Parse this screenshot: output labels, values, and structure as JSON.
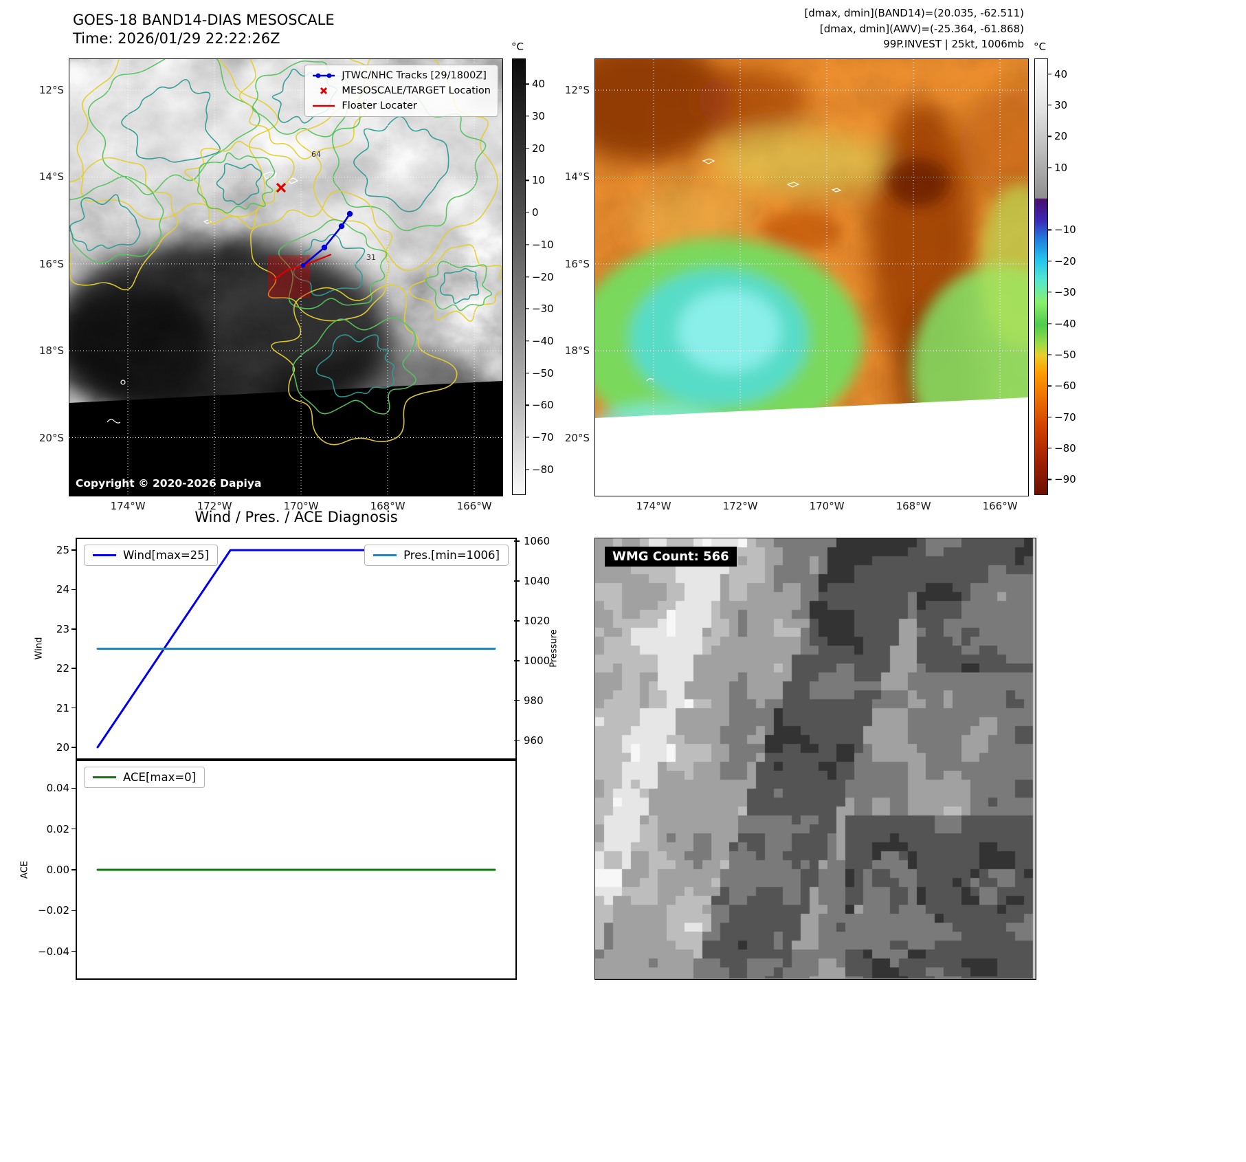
{
  "panel_band14": {
    "title": "GOES-18 BAND14-DIAS MESOSCALE",
    "time_line": "Time: 2026/01/29 22:22:26Z",
    "copyright": "Copyright © 2020-2026 Dapiya",
    "legend_items": [
      {
        "label": "JTWC/NHC Tracks [29/1800Z]",
        "color": "#0000dd",
        "marker": "line-with-dots"
      },
      {
        "label": "MESOSCALE/TARGET Location",
        "color": "#dd0000",
        "marker": "x"
      },
      {
        "label": "Floater Locater",
        "color": "#dd0000",
        "marker": "line"
      }
    ],
    "contour_labels": [
      "31",
      "31",
      "64"
    ],
    "lat_ticks": [
      "12°S",
      "14°S",
      "16°S",
      "18°S",
      "20°S"
    ],
    "lon_ticks": [
      "174°W",
      "172°W",
      "170°W",
      "168°W",
      "166°W"
    ],
    "colorbar": {
      "unit": "°C",
      "ticks": [
        40,
        30,
        20,
        10,
        0,
        -10,
        -20,
        -30,
        -40,
        -50,
        -60,
        -70,
        -80
      ],
      "vmax": 48,
      "vmin": -88
    }
  },
  "panel_awv": {
    "header_lines": [
      "[dmax, dmin](BAND14)=(20.035, -62.511)",
      "[dmax, dmin](AWV)=(-25.364, -61.868)",
      "99P.INVEST | 25kt, 1006mb"
    ],
    "lat_ticks": [
      "12°S",
      "14°S",
      "16°S",
      "18°S",
      "20°S"
    ],
    "lon_ticks": [
      "174°W",
      "172°W",
      "170°W",
      "168°W",
      "166°W"
    ],
    "colorbar": {
      "unit": "°C",
      "ticks": [
        40,
        30,
        20,
        10,
        -10,
        -20,
        -30,
        -40,
        -50,
        -60,
        -70,
        -80,
        -90
      ],
      "vmax": 45,
      "vmin": -95
    }
  },
  "wmg": {
    "count_label": "WMG Count: 566"
  },
  "chart_data": [
    {
      "type": "line",
      "name": "wind-pressure-diagnosis",
      "title": "Wind / Pres. / ACE Diagnosis",
      "left_axis": {
        "label": "Wind",
        "ticks": [
          25,
          24,
          23,
          22,
          21,
          20
        ],
        "range": [
          19.72,
          25.28
        ],
        "format": "int"
      },
      "right_axis": {
        "label": "Pressure",
        "ticks": [
          1060,
          1040,
          1020,
          1000,
          980,
          960
        ],
        "range": [
          950.9,
          1061.1
        ],
        "format": "int"
      },
      "x_axis": {
        "label": "",
        "range": [
          0,
          1
        ],
        "ticks": []
      },
      "series": [
        {
          "name": "Wind[max=25]",
          "color": "#0000ee",
          "axis": "left",
          "legend": "nw",
          "x": [
            0.047,
            0.35,
            0.953
          ],
          "y": [
            20,
            25,
            25
          ]
        },
        {
          "name": "Pres.[min=1006]",
          "color": "#2e7ebc",
          "axis": "right",
          "legend": "ne",
          "x": [
            0.047,
            0.953
          ],
          "y": [
            1006,
            1006
          ]
        }
      ]
    },
    {
      "type": "line",
      "name": "ace-diagnosis",
      "title": "",
      "left_axis": {
        "label": "ACE",
        "ticks": [
          0.04,
          0.02,
          0,
          -0.02,
          -0.04
        ],
        "range": [
          -0.0533,
          0.0533
        ],
        "format": "2dp"
      },
      "x_axis": {
        "label": "",
        "range": [
          0,
          1
        ],
        "ticks": []
      },
      "series": [
        {
          "name": "ACE[max=0]",
          "color": "#0a7a0a",
          "axis": "left",
          "legend": "nw",
          "x": [
            0.047,
            0.953
          ],
          "y": [
            0,
            0
          ]
        }
      ]
    }
  ]
}
